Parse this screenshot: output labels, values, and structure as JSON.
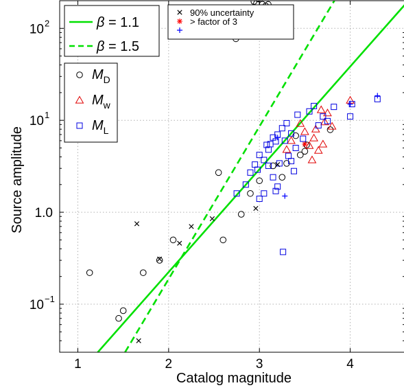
{
  "chart_data": {
    "type": "scatter",
    "xlabel": "Catalog magnitude",
    "ylabel": "Source amplitude",
    "xlim": [
      0.8,
      4.6
    ],
    "ylim": [
      0.03,
      200
    ],
    "yscale": "log",
    "grid": true,
    "x_ticks": [
      {
        "value": 1,
        "label": "1"
      },
      {
        "value": 2,
        "label": "2"
      },
      {
        "value": 3,
        "label": "3"
      },
      {
        "value": 4,
        "label": "4"
      }
    ],
    "y_ticks": [
      {
        "value": 0.1,
        "base": "10",
        "exp": "−1"
      },
      {
        "value": 1,
        "base": "1.0",
        "exp": ""
      },
      {
        "value": 10,
        "base": "10",
        "exp": "1"
      },
      {
        "value": 100,
        "base": "10",
        "exp": "2"
      }
    ],
    "lines": [
      {
        "label_prefix": "β",
        "label_value": " = 1.1",
        "style": "solid",
        "color": "#00e000",
        "points": [
          [
            1.22,
            0.03
          ],
          [
            4.6,
            180
          ]
        ]
      },
      {
        "label_prefix": "β",
        "label_value": " = 1.5",
        "style": "dashed",
        "color": "#00e000",
        "points": [
          [
            1.52,
            0.03
          ],
          [
            3.85,
            220
          ]
        ]
      }
    ],
    "series": [
      {
        "symbol": "M",
        "subscript": "D",
        "marker": "circle",
        "color": "#000000",
        "cloud": {
          "x_start": 1.35,
          "x_end": 3.55,
          "intercept": -1.26,
          "slope": 1.2,
          "count": 750,
          "scatter": 0.1,
          "seed": 7
        },
        "points": [
          [
            1.13,
            0.22
          ],
          [
            1.72,
            0.22
          ],
          [
            1.9,
            0.3
          ],
          [
            2.05,
            0.5
          ],
          [
            2.55,
            2.7
          ],
          [
            3.3,
            3.4
          ],
          [
            3.5,
            4.6
          ],
          [
            3.52,
            5.4
          ],
          [
            3.78,
            7.9
          ],
          [
            3.15,
            3.2
          ],
          [
            3.25,
            2.4
          ],
          [
            3.4,
            6.8
          ],
          [
            3.45,
            4.2
          ],
          [
            2.8,
            0.95
          ],
          [
            2.6,
            0.5
          ],
          [
            2.9,
            1.6
          ],
          [
            3.0,
            2.2
          ],
          [
            1.45,
            0.07
          ],
          [
            1.5,
            0.085
          ]
        ]
      },
      {
        "symbol": "M",
        "subscript": "w",
        "marker": "triangle",
        "color": "#e00000",
        "points": [
          [
            3.3,
            4.8
          ],
          [
            3.45,
            9.2
          ],
          [
            3.5,
            7.5
          ],
          [
            3.55,
            5.3
          ],
          [
            3.6,
            6.4
          ],
          [
            3.62,
            8.0
          ],
          [
            3.65,
            4.7
          ],
          [
            3.7,
            5.5
          ],
          [
            3.72,
            9.6
          ],
          [
            3.75,
            12.0
          ],
          [
            3.8,
            8.6
          ],
          [
            4.0,
            16.5
          ],
          [
            3.35,
            6.0
          ],
          [
            3.58,
            3.7
          ],
          [
            3.68,
            13.0
          ]
        ]
      },
      {
        "symbol": "M",
        "subscript": "L",
        "marker": "square",
        "color": "#0000e0",
        "points": [
          [
            2.75,
            1.6
          ],
          [
            2.85,
            2.0
          ],
          [
            2.9,
            2.7
          ],
          [
            2.95,
            3.3
          ],
          [
            3.0,
            4.2
          ],
          [
            3.05,
            3.7
          ],
          [
            3.08,
            5.4
          ],
          [
            3.1,
            4.8
          ],
          [
            3.12,
            5.5
          ],
          [
            3.15,
            6.5
          ],
          [
            3.18,
            5.9
          ],
          [
            3.2,
            7.0
          ],
          [
            3.22,
            3.4
          ],
          [
            3.25,
            8.2
          ],
          [
            3.28,
            6.0
          ],
          [
            3.3,
            9.3
          ],
          [
            3.32,
            4.1
          ],
          [
            3.35,
            7.2
          ],
          [
            3.38,
            2.8
          ],
          [
            3.4,
            5.0
          ],
          [
            3.42,
            11.5
          ],
          [
            3.48,
            6.3
          ],
          [
            3.55,
            12.5
          ],
          [
            3.6,
            14.3
          ],
          [
            3.65,
            8.8
          ],
          [
            3.7,
            11.0
          ],
          [
            3.75,
            9.8
          ],
          [
            3.82,
            14.0
          ],
          [
            4.0,
            11.0
          ],
          [
            4.02,
            15.0
          ],
          [
            4.3,
            17.0
          ],
          [
            3.2,
            1.9
          ],
          [
            3.18,
            1.7
          ],
          [
            3.0,
            1.4
          ],
          [
            3.26,
            0.37
          ],
          [
            3.1,
            3.2
          ],
          [
            3.35,
            3.6
          ],
          [
            3.15,
            2.4
          ],
          [
            2.98,
            2.9
          ],
          [
            3.05,
            1.6
          ]
        ]
      }
    ],
    "flags": [
      {
        "label": "90% uncertainty",
        "marker": "x",
        "color": "#000000",
        "points": [
          [
            1.65,
            0.75
          ],
          [
            1.67,
            0.04
          ],
          [
            2.12,
            0.46
          ],
          [
            2.96,
            1.1
          ],
          [
            2.48,
            0.85
          ],
          [
            1.9,
            0.31
          ],
          [
            2.25,
            0.7
          ],
          [
            3.2,
            3.3
          ]
        ]
      },
      {
        "label": "> factor of 3",
        "marker": "star",
        "color": "#ff0000",
        "points": [
          [
            3.5,
            5.5
          ]
        ]
      },
      {
        "label": "",
        "marker": "plus",
        "color": "#0000ff",
        "points": [
          [
            3.28,
            1.5
          ],
          [
            4.3,
            18.5
          ],
          [
            3.2,
            6.5
          ],
          [
            4.0,
            15.0
          ]
        ]
      }
    ]
  }
}
